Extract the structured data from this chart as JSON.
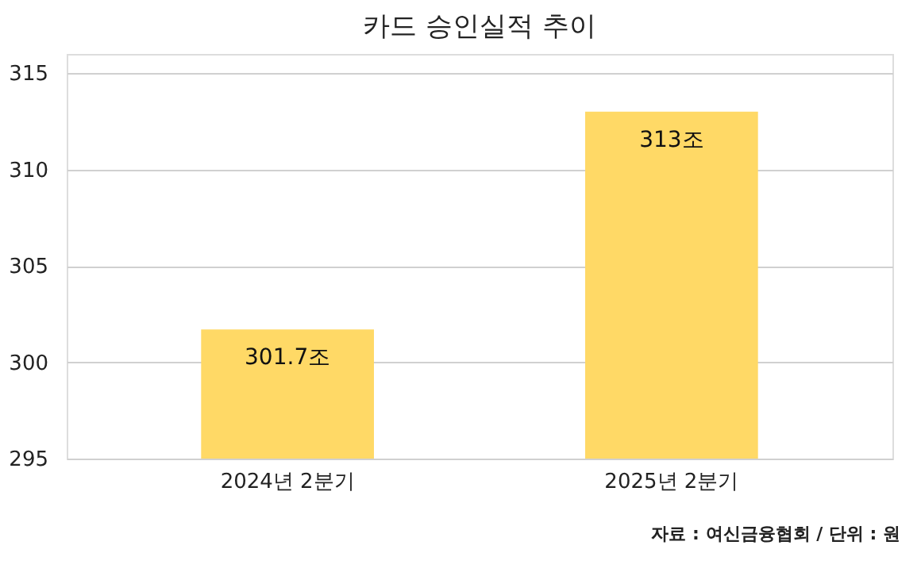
{
  "chart_data": {
    "type": "bar",
    "title": "카드 승인실적 추이",
    "categories": [
      "2024년 2분기",
      "2025년 2분기"
    ],
    "values": [
      301.7,
      313
    ],
    "value_labels": [
      "301.7조",
      "313조"
    ],
    "color": "#ffd966",
    "ylim": [
      295,
      316
    ],
    "yticks": [
      295,
      300,
      305,
      310,
      315
    ],
    "grid": "y",
    "annotations": [
      "자료 : 여신금융협회 / 단위 : 원"
    ]
  }
}
